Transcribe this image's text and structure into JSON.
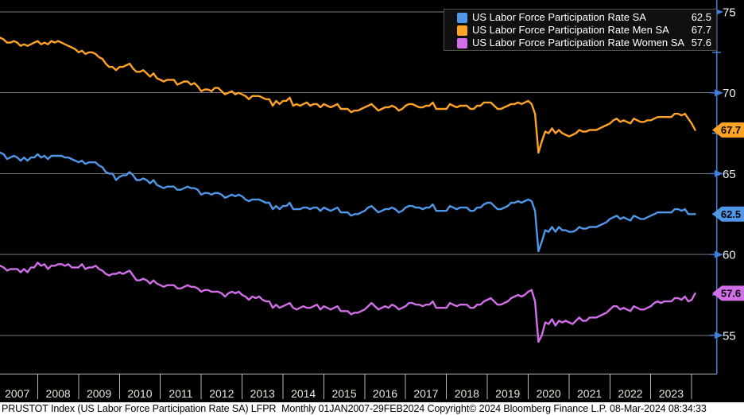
{
  "legend": {
    "items": [
      {
        "label": "US Labor Force Participation Rate SA",
        "value": "62.5",
        "color": "#4f97e8"
      },
      {
        "label": "US Labor Force Participation Rate Men SA",
        "value": "67.7",
        "color": "#ffa326"
      },
      {
        "label": "US Labor Force Participation Rate Women SA",
        "value": "57.6",
        "color": "#d16ee8"
      }
    ]
  },
  "colors": {
    "background": "#000000",
    "axis_blue": "#3f7fd9",
    "gridline": "#7d7d7d",
    "x_tick": "#b8b8b8",
    "year_label": "#eae5da",
    "y_label": "#f2f2f2",
    "footer_bg": "#ffffff",
    "footer_text": "#000000"
  },
  "footer": {
    "text": "PRUSTOT Index (US Labor Force Participation Rate SA) LFPR  Monthly 01JAN2007-29FEB2024 Copyright© 2024 Bloomberg Finance L.P. 08-Mar-2024 08:34:33"
  },
  "chart_data": {
    "type": "line",
    "title": "",
    "xlabel": "",
    "ylabel": "",
    "frequency": "Monthly",
    "period": "01JAN2007-29FEB2024",
    "grid": "horizontal",
    "legend_position": "top-right",
    "x_year_labels": [
      "2007",
      "2008",
      "2009",
      "2010",
      "2011",
      "2012",
      "2013",
      "2014",
      "2015",
      "2016",
      "2017",
      "2018",
      "2019",
      "2020",
      "2021",
      "2022",
      "2023"
    ],
    "y_axis": {
      "side": "right",
      "visible_range": [
        52.6,
        75.7
      ],
      "major_ticks": [
        75,
        70,
        65,
        60,
        55
      ],
      "minor_ticks": [
        72.5,
        67.5,
        62.5,
        57.5
      ]
    },
    "series": [
      {
        "name": "US Labor Force Participation Rate SA",
        "color": "#4f97e8",
        "last_value": 62.5,
        "values": [
          66.4,
          66.3,
          66.2,
          65.9,
          66.0,
          66.1,
          66.0,
          65.8,
          66.0,
          65.8,
          66.0,
          66.0,
          66.2,
          66.0,
          66.1,
          65.9,
          66.1,
          66.1,
          66.1,
          66.1,
          66.0,
          66.0,
          65.9,
          65.8,
          65.7,
          65.8,
          65.6,
          65.7,
          65.7,
          65.7,
          65.5,
          65.4,
          65.1,
          65.0,
          65.0,
          64.6,
          64.8,
          64.9,
          64.9,
          65.1,
          64.9,
          64.6,
          64.6,
          64.7,
          64.6,
          64.4,
          64.6,
          64.3,
          64.2,
          64.1,
          64.2,
          64.2,
          64.2,
          64.0,
          64.0,
          64.1,
          64.2,
          64.1,
          64.1,
          64.0,
          63.7,
          63.8,
          63.8,
          63.7,
          63.8,
          63.8,
          63.7,
          63.5,
          63.6,
          63.7,
          63.6,
          63.7,
          63.6,
          63.4,
          63.3,
          63.4,
          63.4,
          63.4,
          63.3,
          63.2,
          63.2,
          62.8,
          63.0,
          62.8,
          63.0,
          63.0,
          63.2,
          62.8,
          62.8,
          62.8,
          62.9,
          62.9,
          62.8,
          62.9,
          62.9,
          62.7,
          62.9,
          62.8,
          62.7,
          62.8,
          62.9,
          62.6,
          62.6,
          62.6,
          62.4,
          62.5,
          62.5,
          62.6,
          62.7,
          62.9,
          63.0,
          62.8,
          62.6,
          62.7,
          62.8,
          62.8,
          62.9,
          62.8,
          62.6,
          62.7,
          62.9,
          63.0,
          63.0,
          62.9,
          62.9,
          62.8,
          62.9,
          62.9,
          63.1,
          62.7,
          62.7,
          62.7,
          62.7,
          63.0,
          62.9,
          62.8,
          62.9,
          62.9,
          62.9,
          62.7,
          62.7,
          62.9,
          62.9,
          63.1,
          63.2,
          63.2,
          63.0,
          62.8,
          62.8,
          62.9,
          63.0,
          63.2,
          63.2,
          63.3,
          63.2,
          63.3,
          63.4,
          63.3,
          62.7,
          60.2,
          60.8,
          61.5,
          61.4,
          61.7,
          61.4,
          61.7,
          61.5,
          61.5,
          61.4,
          61.4,
          61.5,
          61.7,
          61.6,
          61.6,
          61.7,
          61.7,
          61.7,
          61.8,
          61.9,
          62.0,
          62.2,
          62.3,
          62.4,
          62.2,
          62.3,
          62.2,
          62.1,
          62.4,
          62.3,
          62.2,
          62.2,
          62.3,
          62.4,
          62.5,
          62.6,
          62.6,
          62.6,
          62.6,
          62.6,
          62.8,
          62.8,
          62.7,
          62.8,
          62.5,
          62.5,
          62.5
        ]
      },
      {
        "name": "US Labor Force Participation Rate Men SA",
        "color": "#ffa326",
        "last_value": 67.7,
        "values": [
          73.5,
          73.4,
          73.3,
          73.1,
          73.1,
          73.2,
          73.1,
          72.9,
          73.0,
          72.9,
          73.0,
          73.1,
          73.2,
          73.0,
          73.1,
          73.0,
          73.2,
          73.1,
          73.2,
          73.1,
          73.0,
          72.9,
          72.8,
          72.7,
          72.5,
          72.6,
          72.4,
          72.5,
          72.5,
          72.4,
          72.2,
          72.1,
          71.8,
          71.6,
          71.6,
          71.4,
          71.6,
          71.6,
          71.7,
          71.8,
          71.5,
          71.3,
          71.3,
          71.4,
          71.2,
          71.0,
          71.2,
          70.9,
          70.8,
          70.7,
          70.8,
          70.8,
          70.8,
          70.5,
          70.6,
          70.7,
          70.7,
          70.5,
          70.6,
          70.4,
          70.1,
          70.2,
          70.2,
          70.1,
          70.3,
          70.3,
          70.1,
          69.9,
          70.0,
          70.1,
          69.9,
          70.0,
          69.9,
          69.8,
          69.6,
          69.8,
          69.8,
          69.8,
          69.7,
          69.6,
          69.6,
          69.2,
          69.5,
          69.3,
          69.5,
          69.5,
          69.7,
          69.2,
          69.3,
          69.2,
          69.3,
          69.4,
          69.2,
          69.3,
          69.3,
          69.1,
          69.3,
          69.2,
          69.1,
          69.2,
          69.3,
          69.0,
          69.0,
          69.0,
          68.8,
          68.9,
          68.9,
          69.0,
          69.1,
          69.2,
          69.3,
          69.1,
          68.9,
          69.0,
          69.1,
          69.1,
          69.2,
          69.1,
          68.9,
          69.0,
          69.2,
          69.3,
          69.3,
          69.2,
          69.1,
          69.1,
          69.2,
          69.2,
          69.4,
          69.0,
          69.0,
          69.0,
          69.0,
          69.3,
          69.2,
          69.1,
          69.2,
          69.2,
          69.2,
          69.0,
          69.0,
          69.2,
          69.2,
          69.4,
          69.4,
          69.4,
          69.2,
          69.0,
          69.0,
          69.1,
          69.2,
          69.3,
          69.3,
          69.4,
          69.3,
          69.4,
          69.5,
          69.3,
          68.7,
          66.3,
          67.0,
          67.6,
          67.5,
          67.8,
          67.5,
          67.7,
          67.5,
          67.4,
          67.3,
          67.4,
          67.5,
          67.7,
          67.6,
          67.6,
          67.7,
          67.7,
          67.7,
          67.8,
          67.9,
          68.0,
          68.1,
          68.3,
          68.4,
          68.2,
          68.3,
          68.2,
          68.1,
          68.4,
          68.3,
          68.2,
          68.2,
          68.3,
          68.3,
          68.4,
          68.5,
          68.5,
          68.5,
          68.5,
          68.5,
          68.7,
          68.7,
          68.6,
          68.7,
          68.4,
          68.1,
          67.7
        ]
      },
      {
        "name": "US Labor Force Participation Rate Women SA",
        "color": "#d16ee8",
        "last_value": 57.6,
        "values": [
          59.4,
          59.3,
          59.2,
          59.0,
          59.1,
          59.1,
          59.1,
          58.9,
          59.1,
          58.9,
          59.2,
          59.2,
          59.5,
          59.3,
          59.4,
          59.1,
          59.3,
          59.3,
          59.4,
          59.4,
          59.3,
          59.4,
          59.2,
          59.2,
          59.2,
          59.4,
          59.1,
          59.2,
          59.2,
          59.3,
          59.1,
          59.0,
          58.8,
          58.7,
          58.8,
          58.8,
          58.9,
          58.8,
          58.9,
          59.0,
          58.7,
          58.4,
          58.4,
          58.5,
          58.4,
          58.2,
          58.4,
          58.2,
          58.1,
          58.0,
          58.1,
          58.1,
          58.1,
          57.9,
          57.9,
          58.0,
          58.1,
          58.0,
          58.0,
          57.9,
          57.7,
          57.8,
          57.8,
          57.7,
          57.7,
          57.7,
          57.6,
          57.4,
          57.6,
          57.7,
          57.6,
          57.7,
          57.5,
          57.4,
          57.2,
          57.4,
          57.3,
          57.4,
          57.2,
          57.1,
          57.1,
          56.7,
          56.9,
          56.7,
          56.8,
          56.9,
          57.0,
          56.7,
          56.6,
          56.7,
          56.8,
          56.7,
          56.7,
          56.8,
          56.9,
          56.6,
          56.8,
          56.7,
          56.6,
          56.7,
          56.8,
          56.5,
          56.5,
          56.5,
          56.3,
          56.4,
          56.4,
          56.5,
          56.6,
          56.8,
          57.0,
          56.8,
          56.6,
          56.7,
          56.8,
          56.7,
          56.9,
          56.8,
          56.6,
          56.7,
          56.8,
          57.0,
          57.0,
          56.9,
          56.9,
          56.8,
          56.9,
          56.9,
          57.1,
          56.7,
          56.7,
          56.7,
          56.7,
          57.0,
          56.9,
          56.8,
          56.9,
          56.9,
          56.9,
          56.7,
          56.7,
          56.9,
          56.9,
          57.1,
          57.2,
          57.3,
          57.1,
          56.9,
          56.9,
          57.0,
          57.1,
          57.3,
          57.4,
          57.5,
          57.4,
          57.5,
          57.7,
          57.8,
          57.1,
          54.6,
          55.0,
          55.8,
          55.7,
          56.0,
          55.6,
          55.9,
          55.8,
          55.9,
          55.8,
          55.7,
          55.9,
          56.1,
          55.9,
          55.9,
          56.1,
          56.1,
          56.1,
          56.2,
          56.3,
          56.4,
          56.6,
          56.8,
          56.8,
          56.6,
          56.7,
          56.6,
          56.5,
          56.8,
          56.7,
          56.6,
          56.6,
          56.7,
          56.8,
          57.0,
          57.1,
          57.0,
          57.1,
          57.1,
          57.1,
          57.3,
          57.3,
          57.2,
          57.4,
          57.1,
          57.2,
          57.6
        ]
      }
    ]
  }
}
